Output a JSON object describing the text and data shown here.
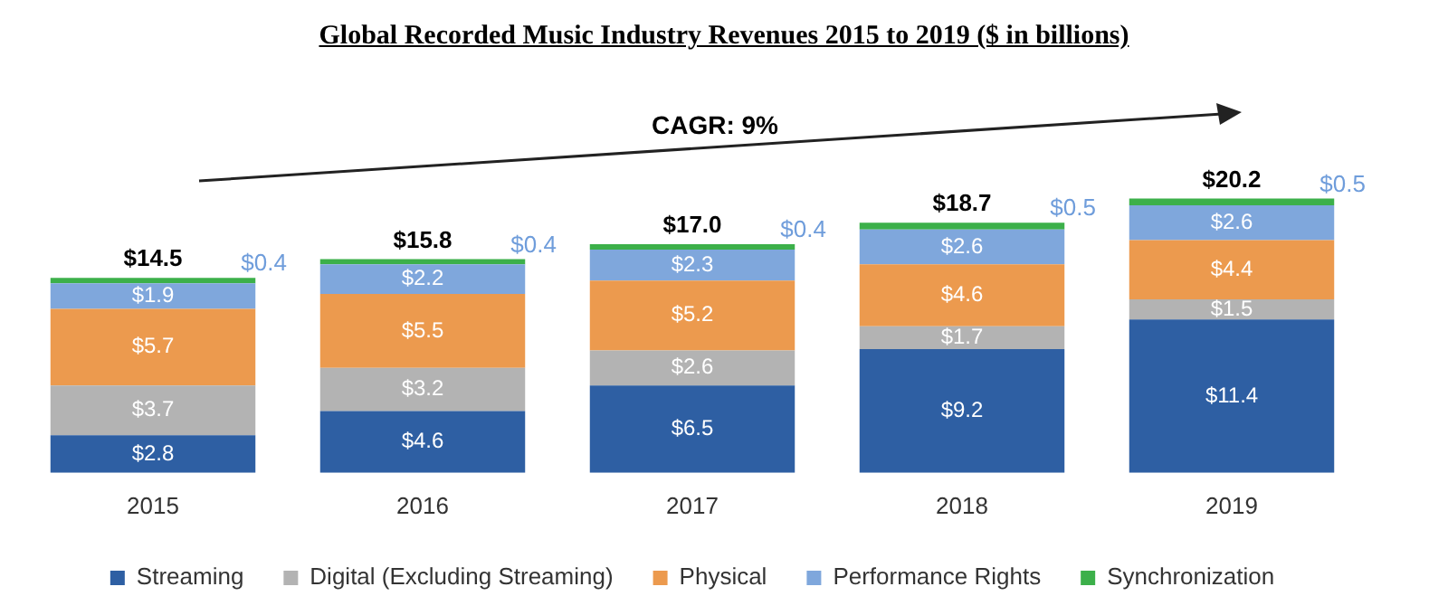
{
  "chart_data": {
    "type": "bar",
    "title": "Global Recorded Music Industry Revenues 2015 to 2019 ($ in billions)",
    "categories": [
      "2015",
      "2016",
      "2017",
      "2018",
      "2019"
    ],
    "stacked": true,
    "legend": "bottom",
    "tick_labels": "x",
    "series": [
      {
        "name": "Streaming",
        "color": "#2e5fa3",
        "values": [
          2.8,
          4.6,
          6.5,
          9.2,
          11.4
        ],
        "value_labels": [
          "$2.8",
          "$4.6",
          "$6.5",
          "$9.2",
          "$11.4"
        ]
      },
      {
        "name": "Digital (Excluding Streaming)",
        "color": "#b3b3b3",
        "values": [
          3.7,
          3.2,
          2.6,
          1.7,
          1.5
        ],
        "value_labels": [
          "$3.7",
          "$3.2",
          "$2.6",
          "$1.7",
          "$1.5"
        ]
      },
      {
        "name": "Physical",
        "color": "#ec9a4e",
        "values": [
          5.7,
          5.5,
          5.2,
          4.6,
          4.4
        ],
        "value_labels": [
          "$5.7",
          "$5.5",
          "$5.2",
          "$4.6",
          "$4.4"
        ]
      },
      {
        "name": "Performance Rights",
        "color": "#7fa7dc",
        "values": [
          1.9,
          2.2,
          2.3,
          2.6,
          2.6
        ],
        "value_labels": [
          "$1.9",
          "$2.2",
          "$2.3",
          "$2.6",
          "$2.6"
        ]
      },
      {
        "name": "Synchronization",
        "color": "#3cb04a",
        "values": [
          0.4,
          0.4,
          0.4,
          0.5,
          0.5
        ],
        "value_labels": [
          "$0.4",
          "$0.4",
          "$0.4",
          "$0.5",
          "$0.5"
        ]
      }
    ],
    "totals": [
      "$14.5",
      "$15.8",
      "$17.0",
      "$18.7",
      "$20.2"
    ],
    "annotations": [
      "CAGR: 9%"
    ]
  }
}
